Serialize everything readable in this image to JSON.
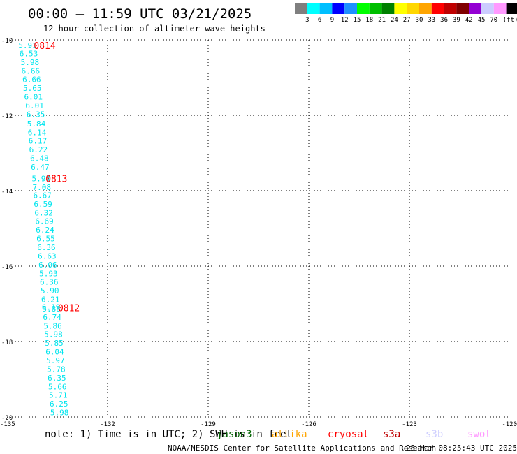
{
  "title": "00:00 – 11:59 UTC 03/21/2025",
  "subtitle": "12 hour collection of altimeter wave heights",
  "legend_scale": {
    "unit": "(ft)",
    "colors": [
      "#7f7f7f",
      "#00ffff",
      "#00bfff",
      "#0000ff",
      "#1e90ff",
      "#00ff00",
      "#00bf00",
      "#008000",
      "#ffff00",
      "#ffd700",
      "#ffa500",
      "#ff0000",
      "#bf0000",
      "#800000",
      "#9400d3",
      "#ccccff",
      "#ff99ff",
      "#000000"
    ],
    "labels": [
      "3",
      "6",
      "9",
      "12",
      "15",
      "18",
      "21",
      "24",
      "27",
      "30",
      "33",
      "36",
      "39",
      "42",
      "45",
      "70"
    ]
  },
  "note": "note:  1) Time is in UTC; 2) SWH is in feet",
  "satellites": [
    {
      "name": "jason3",
      "color": "#006400"
    },
    {
      "name": "altika",
      "color": "#ffa500"
    },
    {
      "name": "cryosat",
      "color": "#ff0000"
    },
    {
      "name": "s3a",
      "color": "#bf0000"
    },
    {
      "name": "s3b",
      "color": "#ccccff"
    },
    {
      "name": "swot",
      "color": "#ff99ff"
    }
  ],
  "credit": "NOAA/NESDIS Center for Satellite Applications and Research",
  "timestamp": "25 Mar 08:25:43 UTC 2025",
  "chart_data": {
    "type": "scatter",
    "xlim": [
      -135,
      -120
    ],
    "ylim": [
      -20,
      -10
    ],
    "x_ticks": [
      -135,
      -132,
      -129,
      -126,
      -123,
      -120
    ],
    "y_ticks": [
      -10,
      -12,
      -14,
      -16,
      -18,
      -20
    ],
    "grid": true,
    "track_color": "#00e5ee",
    "time_label_color": "#ff0000",
    "points": [
      {
        "x": -134.66,
        "y": -10.15,
        "v": "5.91"
      },
      {
        "x": -134.63,
        "y": -10.36,
        "v": "6.53"
      },
      {
        "x": -134.59,
        "y": -10.59,
        "v": "5.98"
      },
      {
        "x": -134.57,
        "y": -10.82,
        "v": "6.66"
      },
      {
        "x": -134.54,
        "y": -11.05,
        "v": "6.66"
      },
      {
        "x": -134.52,
        "y": -11.28,
        "v": "5.65"
      },
      {
        "x": -134.49,
        "y": -11.51,
        "v": "6.01"
      },
      {
        "x": -134.45,
        "y": -11.74,
        "v": "6.01"
      },
      {
        "x": -134.42,
        "y": -11.97,
        "v": "6.35"
      },
      {
        "x": -134.4,
        "y": -12.22,
        "v": "5.84"
      },
      {
        "x": -134.38,
        "y": -12.45,
        "v": "6.14"
      },
      {
        "x": -134.36,
        "y": -12.68,
        "v": "6.17"
      },
      {
        "x": -134.34,
        "y": -12.91,
        "v": "6.22"
      },
      {
        "x": -134.31,
        "y": -13.14,
        "v": "6.48"
      },
      {
        "x": -134.29,
        "y": -13.37,
        "v": "6.47"
      },
      {
        "x": -134.26,
        "y": -13.68,
        "v": "5.94"
      },
      {
        "x": -134.24,
        "y": -13.91,
        "v": "7.08"
      },
      {
        "x": -134.22,
        "y": -14.12,
        "v": "6.67"
      },
      {
        "x": -134.2,
        "y": -14.35,
        "v": "6.59"
      },
      {
        "x": -134.18,
        "y": -14.58,
        "v": "6.32"
      },
      {
        "x": -134.16,
        "y": -14.81,
        "v": "6.69"
      },
      {
        "x": -134.14,
        "y": -15.04,
        "v": "6.24"
      },
      {
        "x": -134.12,
        "y": -15.27,
        "v": "6.55"
      },
      {
        "x": -134.1,
        "y": -15.5,
        "v": "6.36"
      },
      {
        "x": -134.08,
        "y": -15.73,
        "v": "6.63"
      },
      {
        "x": -134.06,
        "y": -15.96,
        "v": "6.06"
      },
      {
        "x": -134.04,
        "y": -16.19,
        "v": "5.93"
      },
      {
        "x": -134.02,
        "y": -16.42,
        "v": "6.36"
      },
      {
        "x": -134.0,
        "y": -16.65,
        "v": "5.90"
      },
      {
        "x": -133.98,
        "y": -16.88,
        "v": "6.21"
      },
      {
        "x": -133.96,
        "y": -17.08,
        "v": "6.19"
      },
      {
        "x": -133.95,
        "y": -17.13,
        "v": "5.88"
      },
      {
        "x": -133.93,
        "y": -17.35,
        "v": "6.74"
      },
      {
        "x": -133.91,
        "y": -17.58,
        "v": "5.86"
      },
      {
        "x": -133.89,
        "y": -17.81,
        "v": "5.98"
      },
      {
        "x": -133.87,
        "y": -18.04,
        "v": "5.85"
      },
      {
        "x": -133.85,
        "y": -18.27,
        "v": "6.04"
      },
      {
        "x": -133.83,
        "y": -18.5,
        "v": "5.97"
      },
      {
        "x": -133.81,
        "y": -18.73,
        "v": "5.78"
      },
      {
        "x": -133.79,
        "y": -18.96,
        "v": "6.35"
      },
      {
        "x": -133.77,
        "y": -19.19,
        "v": "5.66"
      },
      {
        "x": -133.75,
        "y": -19.42,
        "v": "5.71"
      },
      {
        "x": -133.73,
        "y": -19.65,
        "v": "6.25"
      },
      {
        "x": -133.71,
        "y": -19.88,
        "v": "5.98"
      }
    ],
    "time_labels": [
      {
        "x": -134.2,
        "y": -10.15,
        "label": "0814"
      },
      {
        "x": -133.85,
        "y": -13.68,
        "label": "0813"
      },
      {
        "x": -133.48,
        "y": -17.1,
        "label": "0812"
      }
    ]
  }
}
